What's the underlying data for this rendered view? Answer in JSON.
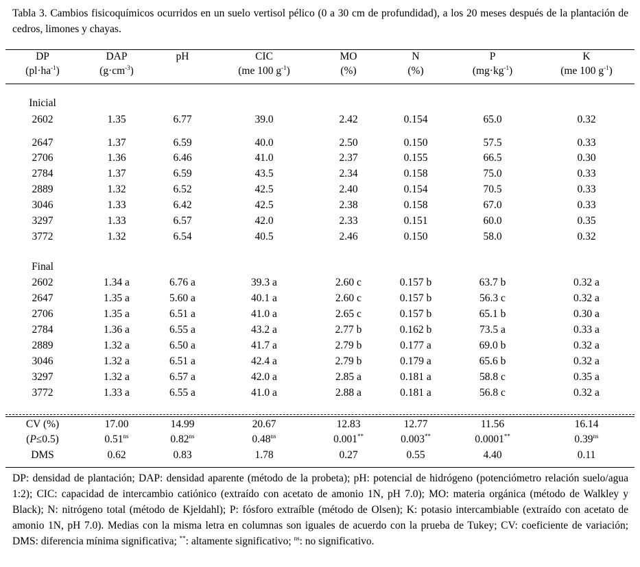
{
  "title": "Tabla 3. Cambios fisicoquímicos ocurridos en un suelo vertisol pélico (0 a 30 cm de profundidad), a los 20 meses después de la plantación de cedros, limones y chayas.",
  "columns": [
    {
      "name": "DP",
      "unit": {
        "text": "(pl·ha",
        "sup": "-1",
        "end": ")"
      }
    },
    {
      "name": "DAP",
      "unit": {
        "text": "(g·cm",
        "sup": "-3",
        "end": ")"
      }
    },
    {
      "name": "pH"
    },
    {
      "name": "CIC",
      "unit": {
        "text": "(me 100 g",
        "sup": "-1",
        "end": ")"
      }
    },
    {
      "name": "MO",
      "unit": {
        "text": "(%)"
      }
    },
    {
      "name": "N",
      "unit": {
        "text": "(%)"
      }
    },
    {
      "name": "P",
      "unit": {
        "text": "(mg·kg",
        "sup": "-1",
        "end": ")"
      }
    },
    {
      "name": "K",
      "unit": {
        "text": "(me 100 g",
        "sup": "-1",
        "end": ")"
      }
    }
  ],
  "sections": [
    {
      "label": "Inicial",
      "rows": [
        [
          "2602",
          "1.35",
          "6.77",
          "39.0",
          "2.42",
          "0.154",
          "65.0",
          "0.32"
        ],
        [
          "2647",
          "1.37",
          "6.59",
          "40.0",
          "2.50",
          "0.150",
          "57.5",
          "0.33"
        ],
        [
          "2706",
          "1.36",
          "6.46",
          "41.0",
          "2.37",
          "0.155",
          "66.5",
          "0.30"
        ],
        [
          "2784",
          "1.37",
          "6.59",
          "43.5",
          "2.34",
          "0.158",
          "75.0",
          "0.33"
        ],
        [
          "2889",
          "1.32",
          "6.52",
          "42.5",
          "2.40",
          "0.154",
          "70.5",
          "0.33"
        ],
        [
          "3046",
          "1.33",
          "6.42",
          "42.5",
          "2.38",
          "0.158",
          "67.0",
          "0.33"
        ],
        [
          "3297",
          "1.33",
          "6.57",
          "42.0",
          "2.33",
          "0.151",
          "60.0",
          "0.35"
        ],
        [
          "3772",
          "1.32",
          "6.54",
          "40.5",
          "2.46",
          "0.150",
          "58.0",
          "0.32"
        ]
      ]
    },
    {
      "label": "Final",
      "rows": [
        [
          "2602",
          "1.34 a",
          "6.76 a",
          "39.3 a",
          "2.60 c",
          "0.157 b",
          "63.7 b",
          "0.32 a"
        ],
        [
          "2647",
          "1.35 a",
          "5.60 a",
          "40.1 a",
          "2.60 c",
          "0.157 b",
          "56.3 c",
          "0.32 a"
        ],
        [
          "2706",
          "1.35 a",
          "6.51 a",
          "41.0 a",
          "2.65 c",
          "0.157 b",
          "65.1 b",
          "0.30 a"
        ],
        [
          "2784",
          "1.36 a",
          "6.55 a",
          "43.2 a",
          "2.77 b",
          "0.162 b",
          "73.5 a",
          "0.33 a"
        ],
        [
          "2889",
          "1.32 a",
          "6.50 a",
          "41.7 a",
          "2.79 b",
          "0.177 a",
          "69.0 b",
          "0.32 a"
        ],
        [
          "3046",
          "1.32 a",
          "6.51 a",
          "42.4 a",
          "2.79 b",
          "0.179 a",
          "65.6 b",
          "0.32 a"
        ],
        [
          "3297",
          "1.32 a",
          "6.57 a",
          "42.0 a",
          "2.85 a",
          "0.181 a",
          "58.8 c",
          "0.35 a"
        ],
        [
          "3772",
          "1.33 a",
          "6.55 a",
          "41.0 a",
          "2.88 a",
          "0.181 a",
          "56.8 c",
          "0.32 a"
        ]
      ]
    }
  ],
  "stats": [
    [
      "CV (%)",
      "17.00",
      "14.99",
      "20.67",
      "12.83",
      "12.77",
      "11.56",
      "16.14"
    ],
    [
      {
        "open": "(",
        "italic": "P",
        "rest": "≤0.5)"
      },
      {
        "text": "0.51",
        "sup": "ns"
      },
      {
        "text": "0.82",
        "sup": "ns"
      },
      {
        "text": "0.48",
        "sup": "ns"
      },
      {
        "text": "0.001",
        "sup": "**"
      },
      {
        "text": "0.003",
        "sup": "**"
      },
      {
        "text": "0.0001",
        "sup": "**"
      },
      {
        "text": "0.39",
        "sup": "ns"
      }
    ],
    [
      "DMS",
      "0.62",
      "0.83",
      "1.78",
      "0.27",
      "0.55",
      "4.40",
      "0.11"
    ]
  ],
  "footnote": [
    "DP: densidad de plantación; DAP: densidad aparente (método de la probeta); pH: potencial de hidrógeno (potenciómetro relación suelo/agua 1:2); CIC: capacidad de intercambio catiónico (extraído con acetato de amonio 1N, pH 7.0); MO: materia orgánica (método de Walkley y Black); N: nitrógeno total (método de Kjeldahl); P: fósforo extraíble (método de Olsen); K: potasio intercambiable (extraído con acetato de amonio 1N, pH 7.0). Medias con la misma letra en columnas son iguales de acuerdo con la prueba de Tukey; CV: coeficiente de variación; DMS: diferencia mínima significativa; ",
    {
      "sup": "**"
    },
    ": altamente significativo; ",
    {
      "sup": "ns"
    },
    ": no significativo."
  ]
}
